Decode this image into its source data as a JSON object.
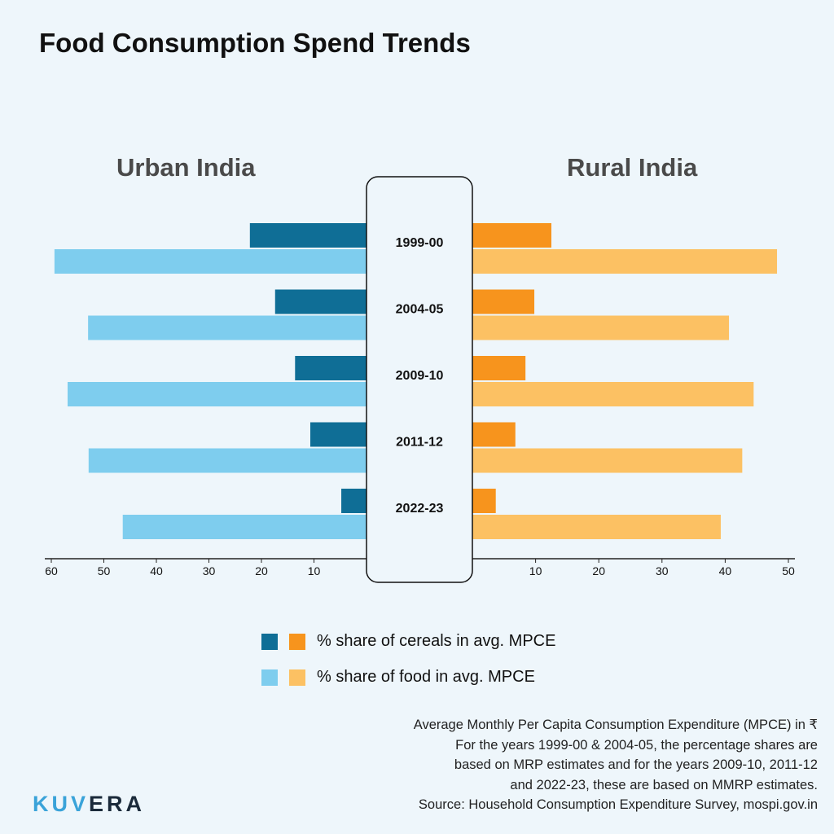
{
  "title": "Food Consumption Spend Trends",
  "panels": {
    "left": "Urban India",
    "right": "Rural India"
  },
  "chart_data": {
    "type": "bar",
    "orientation": "horizontal-butterfly",
    "categories": [
      "1999-00",
      "2004-05",
      "2009-10",
      "2011-12",
      "2022-23"
    ],
    "urban": {
      "xlim": [
        0,
        60
      ],
      "ticks": [
        60,
        50,
        40,
        30,
        20,
        10
      ],
      "series": [
        {
          "name": "% share of cereals in avg. MPCE",
          "color": "#0f6e96",
          "values": [
            22.2,
            17.4,
            13.6,
            10.7,
            4.8
          ]
        },
        {
          "name": "% share of food in avg. MPCE",
          "color": "#7ecdee",
          "values": [
            59.4,
            53.0,
            56.9,
            52.9,
            46.4
          ]
        }
      ]
    },
    "rural": {
      "xlim": [
        0,
        50
      ],
      "ticks": [
        10,
        20,
        30,
        40,
        50
      ],
      "series": [
        {
          "name": "% share of cereals in avg. MPCE",
          "color": "#f7941d",
          "values": [
            12.5,
            9.8,
            8.4,
            6.8,
            3.7
          ]
        },
        {
          "name": "% share of food in avg. MPCE",
          "color": "#fcc163",
          "values": [
            48.2,
            40.6,
            44.5,
            42.7,
            39.3
          ]
        }
      ]
    },
    "legend": [
      "% share of cereals in avg. MPCE",
      "% share of food in avg. MPCE"
    ],
    "legend_position": "bottom-center"
  },
  "notes": [
    "Average Monthly Per Capita Consumption Expenditure (MPCE) in ₹",
    "For the years 1999-00 & 2004-05, the percentage shares are",
    "based on MRP estimates and for the years 2009-10, 2011-12",
    "and 2022-23, these are based on MMRP estimates.",
    "Source: Household Consumption Expenditure Survey, mospi.gov.in"
  ],
  "logo": {
    "text_a": "KUV",
    "text_b": "ERA",
    "color_a": "#3aa3d9",
    "color_b": "#1b2a3a"
  }
}
